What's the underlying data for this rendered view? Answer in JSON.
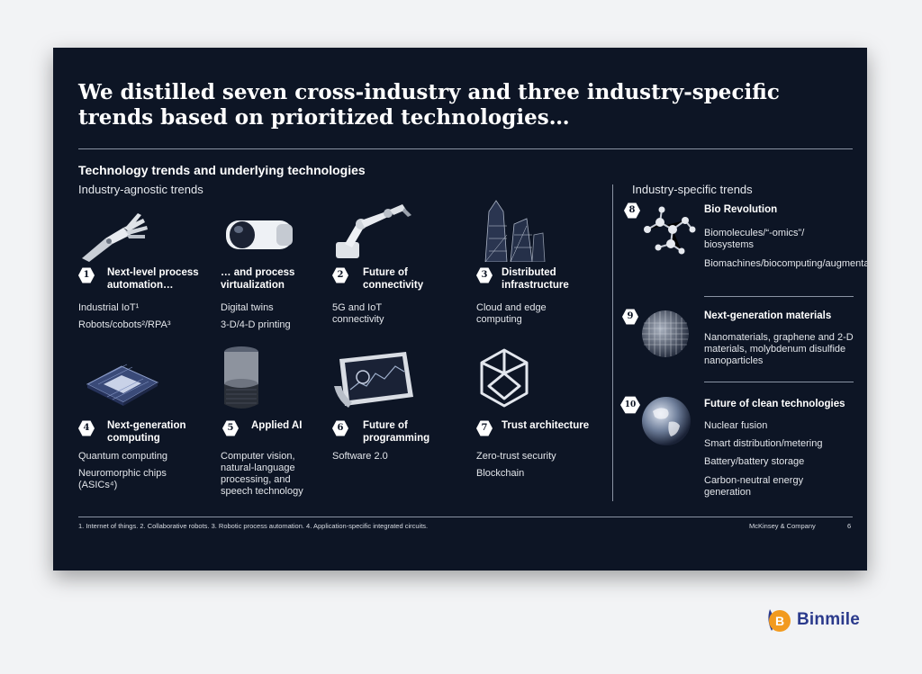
{
  "title": "We distilled seven cross-industry and three industry-specific trends based on prioritized technologies…",
  "section_title": "Technology trends and underlying technologies",
  "agnostic_label": "Industry-agnostic trends",
  "specific_label": "Industry-specific trends",
  "trends": [
    {
      "num": "1",
      "title": "Next-level process automation…",
      "items": [
        "Industrial IoT¹",
        "Robots/cobots²/RPA³"
      ],
      "icon": "robot-hand-icon"
    },
    {
      "num": "",
      "title": "… and process virtualization",
      "items": [
        "Digital twins",
        "3-D/4-D printing"
      ],
      "icon": "vr-headset-icon"
    },
    {
      "num": "2",
      "title": "Future of connectivity",
      "items": [
        "5G and IoT connectivity"
      ],
      "icon": "robot-arm-icon"
    },
    {
      "num": "3",
      "title": "Distributed infrastructure",
      "items": [
        "Cloud and edge computing"
      ],
      "icon": "skyscraper-icon"
    },
    {
      "num": "4",
      "title": "Next-generation computing",
      "items": [
        "Quantum computing",
        "Neuromorphic chips (ASICs⁴)"
      ],
      "icon": "chip-icon"
    },
    {
      "num": "5",
      "title": "Applied AI",
      "items": [
        "Computer vision, natural-language processing, and speech technology"
      ],
      "icon": "smart-speaker-icon"
    },
    {
      "num": "6",
      "title": "Future of programming",
      "items": [
        "Software 2.0"
      ],
      "icon": "tablet-icon"
    },
    {
      "num": "7",
      "title": "Trust architecture",
      "items": [
        "Zero-trust security",
        "Blockchain"
      ],
      "icon": "wireframe-cube-icon"
    }
  ],
  "industry_trends": [
    {
      "num": "8",
      "title": "Bio Revolution",
      "items": [
        "Biomolecules/“-omics”/ biosystems",
        "Biomachines/biocomputing/augmentation"
      ],
      "icon": "molecule-icon"
    },
    {
      "num": "9",
      "title": "Next-generation materials",
      "items": [
        "Nanomaterials, graphene and 2-D materials, molybdenum disulfide nanoparticles"
      ],
      "icon": "nanomaterial-sphere-icon"
    },
    {
      "num": "10",
      "title": "Future of clean technologies",
      "items": [
        "Nuclear fusion",
        "Smart distribution/metering",
        "Battery/battery storage",
        "Carbon-neutral energy generation"
      ],
      "icon": "earth-icon"
    }
  ],
  "footnote": "1. Internet of things. 2. Collaborative robots. 3. Robotic process automation. 4. Application-specific integrated circuits.",
  "brand": "McKinsey & Company",
  "page_number": "6",
  "logo": {
    "text": "Binmile",
    "letter": "B"
  },
  "colors": {
    "slide_bg": "#0d1525",
    "page_bg": "#f2f3f5",
    "logo_blue": "#2b3a8c",
    "logo_orange": "#f29a1f"
  }
}
